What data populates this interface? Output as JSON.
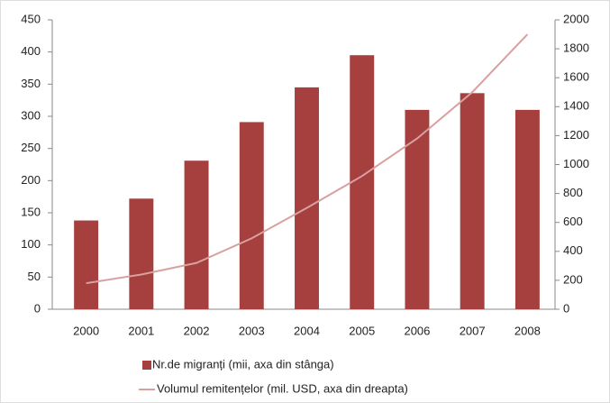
{
  "chart_data": {
    "type": "bar_line",
    "categories": [
      "2000",
      "2001",
      "2002",
      "2003",
      "2004",
      "2005",
      "2006",
      "2007",
      "2008"
    ],
    "series": [
      {
        "name": "Nr.de migranți (mii, axa din stânga)",
        "color": "#a5403f",
        "type": "bar",
        "values": [
          138,
          172,
          231,
          291,
          345,
          395,
          310,
          336,
          310
        ]
      },
      {
        "name": "Volumul remitențelor (mil. USD, axa din dreapta)",
        "color": "#d9a0a0",
        "type": "line",
        "axis": "y2",
        "values": [
          180,
          240,
          320,
          490,
          700,
          920,
          1180,
          1500,
          1900
        ]
      }
    ],
    "ylim": [
      0,
      450
    ],
    "yticks": [
      0,
      50,
      100,
      150,
      200,
      250,
      300,
      350,
      400,
      450
    ],
    "y2lim": [
      0,
      2000
    ],
    "y2ticks": [
      0,
      200,
      400,
      600,
      800,
      1000,
      1200,
      1400,
      1600,
      1800,
      2000
    ]
  }
}
